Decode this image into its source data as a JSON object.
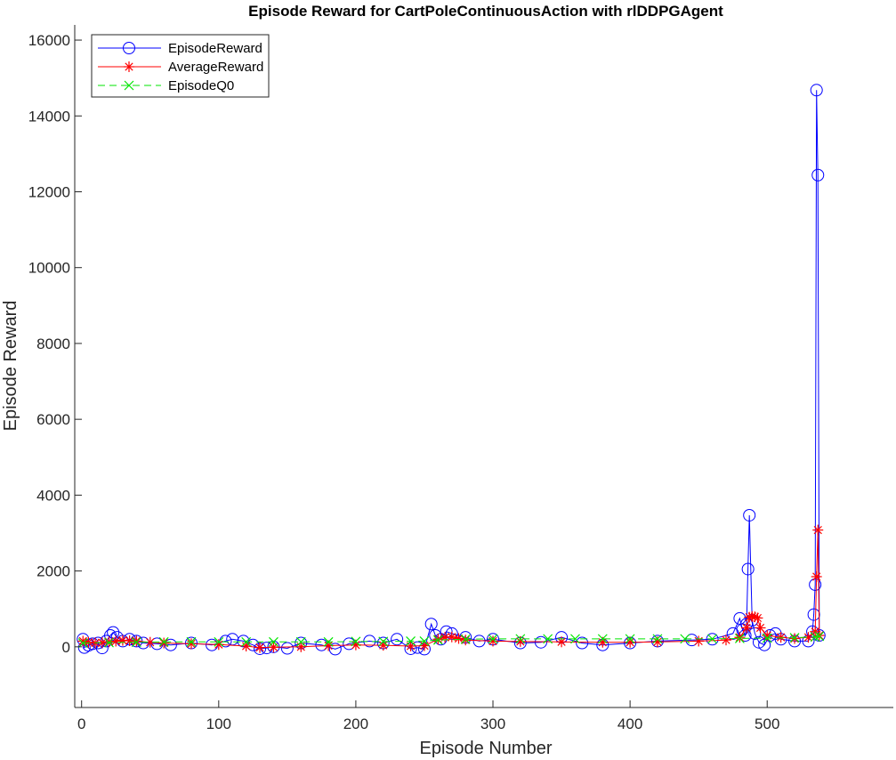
{
  "chart_data": {
    "type": "line",
    "title": "Episode Reward for CartPoleContinuousAction with rlDDPGAgent",
    "xlabel": "Episode Number",
    "ylabel": "Episode Reward",
    "xlim": [
      -5,
      592
    ],
    "ylim": [
      -1600,
      16400
    ],
    "xticks": [
      0,
      100,
      200,
      300,
      400,
      500
    ],
    "yticks": [
      0,
      2000,
      4000,
      6000,
      8000,
      10000,
      12000,
      14000,
      16000
    ],
    "grid": false,
    "legend_position": "top-left",
    "series": [
      {
        "name": "EpisodeReward",
        "color": "#0000ff",
        "marker": "circle",
        "line": "solid",
        "x": [
          1,
          2,
          5,
          8,
          12,
          15,
          18,
          21,
          23,
          26,
          30,
          35,
          40,
          45,
          55,
          65,
          80,
          95,
          105,
          110,
          118,
          125,
          130,
          135,
          140,
          150,
          160,
          175,
          185,
          195,
          210,
          220,
          230,
          240,
          245,
          250,
          255,
          258,
          262,
          266,
          270,
          280,
          290,
          300,
          320,
          335,
          350,
          365,
          380,
          400,
          420,
          445,
          460,
          475,
          480,
          482,
          484,
          485,
          486,
          487,
          489,
          491,
          494,
          498,
          502,
          506,
          510,
          520,
          530,
          533,
          534,
          535,
          536,
          537,
          538
        ],
        "y": [
          200,
          -20,
          40,
          80,
          100,
          -30,
          150,
          300,
          380,
          250,
          150,
          200,
          150,
          100,
          80,
          50,
          100,
          50,
          150,
          200,
          150,
          50,
          -50,
          -30,
          0,
          -40,
          100,
          50,
          -60,
          80,
          150,
          100,
          200,
          -50,
          -20,
          -60,
          600,
          300,
          200,
          400,
          350,
          250,
          150,
          200,
          100,
          120,
          250,
          100,
          50,
          100,
          150,
          180,
          200,
          350,
          750,
          450,
          300,
          600,
          2050,
          3470,
          700,
          350,
          120,
          50,
          300,
          350,
          200,
          150,
          150,
          400,
          850,
          1640,
          14680,
          12440,
          300
        ]
      },
      {
        "name": "AverageReward",
        "color": "#ff0000",
        "marker": "asterisk",
        "line": "solid",
        "x": [
          1,
          5,
          10,
          15,
          20,
          25,
          30,
          35,
          40,
          50,
          60,
          80,
          100,
          120,
          130,
          140,
          160,
          180,
          200,
          220,
          240,
          250,
          260,
          265,
          270,
          275,
          280,
          300,
          320,
          350,
          380,
          400,
          420,
          450,
          470,
          480,
          485,
          487,
          489,
          491,
          493,
          495,
          500,
          510,
          520,
          530,
          535,
          536,
          537,
          538
        ],
        "y": [
          150,
          120,
          100,
          110,
          130,
          150,
          170,
          160,
          150,
          120,
          100,
          80,
          60,
          20,
          -20,
          -10,
          0,
          30,
          50,
          40,
          20,
          30,
          200,
          250,
          260,
          220,
          180,
          150,
          140,
          130,
          120,
          120,
          130,
          150,
          180,
          250,
          500,
          780,
          800,
          790,
          760,
          500,
          300,
          250,
          220,
          250,
          400,
          1850,
          3080,
          300
        ]
      },
      {
        "name": "EpisodeQ0",
        "color": "#00e600",
        "marker": "x",
        "line": "dashed",
        "x": [
          1,
          20,
          40,
          60,
          80,
          100,
          120,
          140,
          160,
          180,
          200,
          220,
          240,
          250,
          260,
          280,
          300,
          320,
          340,
          360,
          380,
          400,
          420,
          440,
          460,
          480,
          500,
          520,
          535,
          538
        ],
        "y": [
          100,
          110,
          120,
          130,
          130,
          130,
          130,
          130,
          130,
          130,
          140,
          140,
          150,
          150,
          180,
          200,
          210,
          210,
          210,
          210,
          210,
          210,
          210,
          210,
          210,
          220,
          230,
          240,
          260,
          280
        ]
      }
    ]
  }
}
